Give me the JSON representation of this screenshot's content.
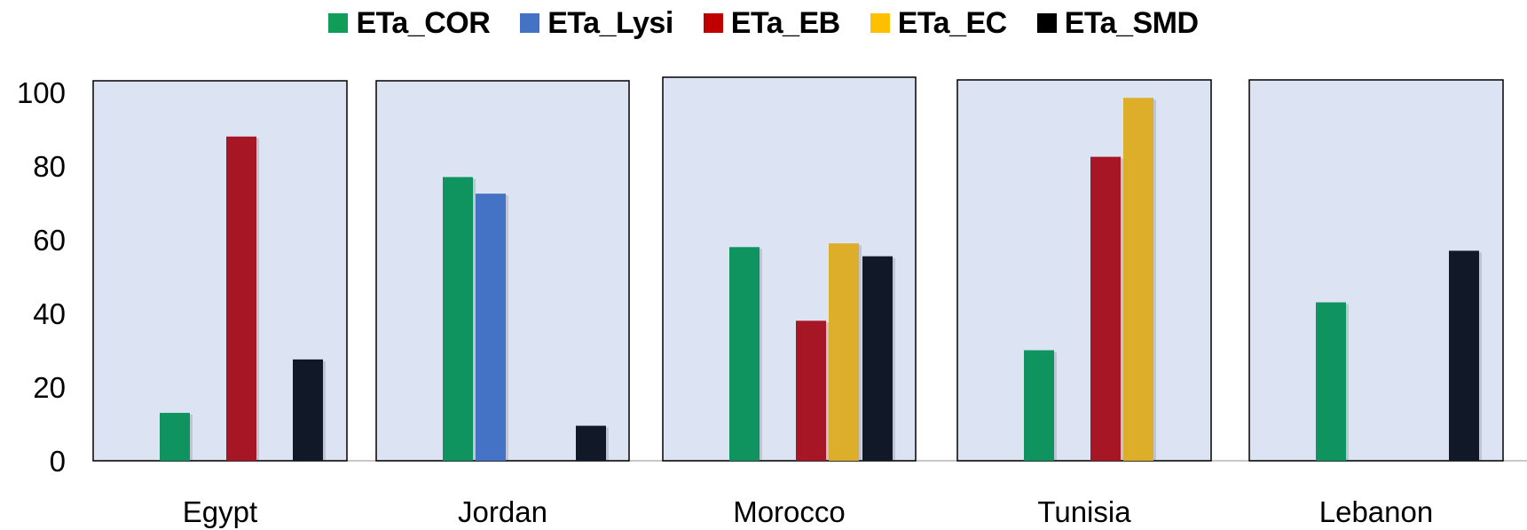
{
  "chart_data": {
    "type": "bar",
    "categories": [
      "Egypt",
      "Jordan",
      "Morocco",
      "Tunisia",
      "Lebanon"
    ],
    "series": [
      {
        "name": "ETa_COR",
        "color": "#0f9460",
        "values": [
          13,
          77,
          58,
          30,
          43
        ]
      },
      {
        "name": "ETa_Lysi",
        "color": "#4472c4",
        "values": [
          null,
          72.5,
          null,
          null,
          null
        ]
      },
      {
        "name": "ETa_EB",
        "color": "#a71625",
        "values": [
          88,
          null,
          38,
          82.5,
          null
        ]
      },
      {
        "name": "ETa_EC",
        "color": "#dcae29",
        "values": [
          null,
          null,
          59,
          98.5,
          null
        ]
      },
      {
        "name": "ETa_SMD",
        "color": "#111827",
        "values": [
          27.5,
          9.5,
          55.5,
          null,
          57
        ]
      }
    ],
    "legend_swatch_colors": [
      "#0f9d58",
      "#4472c4",
      "#c00000",
      "#ffc000",
      "#000000"
    ],
    "yticks": [
      0,
      20,
      40,
      60,
      80,
      100
    ],
    "ylim": [
      0,
      100
    ],
    "panel_background": "#dce3f2",
    "legend_position": "top-center",
    "grid": false
  }
}
